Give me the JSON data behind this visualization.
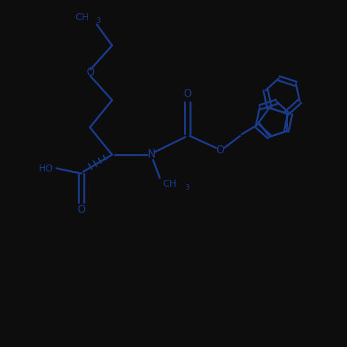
{
  "bg_color": "#0d0d0d",
  "bond_color": "#1a3a8a",
  "line_width": 2.0,
  "figsize": [
    5.0,
    5.0
  ],
  "dpi": 100,
  "xlim": [
    0,
    10
  ],
  "ylim": [
    0,
    10
  ]
}
